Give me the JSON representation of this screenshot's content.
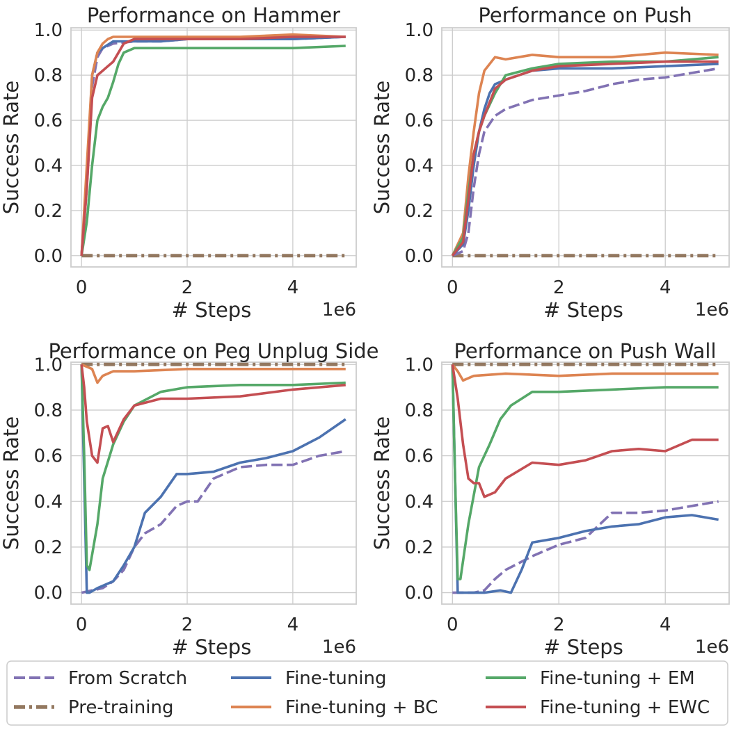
{
  "colors": {
    "from_scratch": "#8172b3",
    "pretraining": "#937860",
    "finetuning": "#4c72b0",
    "finetuning_bc": "#dd8452",
    "finetuning_em": "#55a868",
    "finetuning_ewc": "#c44e52",
    "grid": "#cccccc",
    "frame": "#cccccc"
  },
  "legend": {
    "entries": [
      {
        "key": "from_scratch",
        "label": "From Scratch",
        "style": "dashed"
      },
      {
        "key": "pretraining",
        "label": "Pre-training",
        "style": "dashdot"
      },
      {
        "key": "finetuning",
        "label": "Fine-tuning",
        "style": "solid"
      },
      {
        "key": "finetuning_bc",
        "label": "Fine-tuning + BC",
        "style": "solid"
      },
      {
        "key": "finetuning_em",
        "label": "Fine-tuning + EM",
        "style": "solid"
      },
      {
        "key": "finetuning_ewc",
        "label": "Fine-tuning + EWC",
        "style": "solid"
      }
    ]
  },
  "chart_data": [
    {
      "type": "line",
      "title": "Performance on Hammer",
      "xlabel": "# Steps",
      "ylabel": "Success Rate",
      "x_scale_label": "1e6",
      "xlim": [
        -0.2,
        5.2
      ],
      "ylim": [
        -0.05,
        1.01
      ],
      "xticks": [
        0,
        2,
        4
      ],
      "yticks": [
        "0.0",
        "0.2",
        "0.4",
        "0.6",
        "0.8",
        "1.0"
      ],
      "series": [
        {
          "key": "pretraining",
          "name": "Pre-training",
          "x": [
            0,
            5
          ],
          "y": [
            0,
            0
          ]
        },
        {
          "key": "from_scratch",
          "name": "From Scratch",
          "x": [
            0,
            0.1,
            0.2,
            0.3,
            0.4,
            0.6,
            1,
            1.5,
            2,
            3,
            4,
            5
          ],
          "y": [
            0,
            0.3,
            0.75,
            0.88,
            0.92,
            0.94,
            0.95,
            0.95,
            0.96,
            0.96,
            0.96,
            0.97
          ]
        },
        {
          "key": "finetuning",
          "name": "Fine-tuning",
          "x": [
            0,
            0.1,
            0.2,
            0.3,
            0.4,
            0.6,
            1,
            1.5,
            2,
            3,
            4,
            5
          ],
          "y": [
            0,
            0.35,
            0.8,
            0.9,
            0.92,
            0.95,
            0.95,
            0.95,
            0.96,
            0.96,
            0.96,
            0.97
          ]
        },
        {
          "key": "finetuning_bc",
          "name": "Fine-tuning + BC",
          "x": [
            0,
            0.1,
            0.2,
            0.3,
            0.4,
            0.5,
            0.6,
            1,
            2,
            3,
            4,
            5
          ],
          "y": [
            0,
            0.4,
            0.8,
            0.9,
            0.94,
            0.96,
            0.97,
            0.97,
            0.97,
            0.97,
            0.98,
            0.97
          ]
        },
        {
          "key": "finetuning_em",
          "name": "Fine-tuning + EM",
          "x": [
            0,
            0.1,
            0.2,
            0.3,
            0.4,
            0.5,
            0.6,
            0.7,
            0.8,
            1,
            2,
            3,
            4,
            5
          ],
          "y": [
            0,
            0.15,
            0.4,
            0.6,
            0.66,
            0.7,
            0.77,
            0.85,
            0.9,
            0.92,
            0.92,
            0.92,
            0.92,
            0.93
          ]
        },
        {
          "key": "finetuning_ewc",
          "name": "Fine-tuning + EWC",
          "x": [
            0,
            0.1,
            0.2,
            0.3,
            0.4,
            0.5,
            0.6,
            0.7,
            0.8,
            1,
            2,
            3,
            4,
            5
          ],
          "y": [
            0,
            0.3,
            0.7,
            0.8,
            0.82,
            0.84,
            0.86,
            0.9,
            0.94,
            0.96,
            0.96,
            0.96,
            0.97,
            0.97
          ]
        }
      ]
    },
    {
      "type": "line",
      "title": "Performance on Push",
      "xlabel": "# Steps",
      "ylabel": "Success Rate",
      "x_scale_label": "1e6",
      "xlim": [
        -0.2,
        5.2
      ],
      "ylim": [
        -0.05,
        1.01
      ],
      "xticks": [
        0,
        2,
        4
      ],
      "yticks": [
        "0.0",
        "0.2",
        "0.4",
        "0.6",
        "0.8",
        "1.0"
      ],
      "series": [
        {
          "key": "pretraining",
          "name": "Pre-training",
          "x": [
            0,
            5
          ],
          "y": [
            0,
            0
          ]
        },
        {
          "key": "from_scratch",
          "name": "From Scratch",
          "x": [
            0,
            0.2,
            0.3,
            0.4,
            0.5,
            0.6,
            0.8,
            1,
            1.5,
            2,
            2.5,
            3,
            3.5,
            4,
            4.5,
            5
          ],
          "y": [
            0,
            0.02,
            0.1,
            0.3,
            0.45,
            0.55,
            0.62,
            0.65,
            0.69,
            0.71,
            0.73,
            0.76,
            0.78,
            0.79,
            0.81,
            0.83
          ]
        },
        {
          "key": "finetuning",
          "name": "Fine-tuning",
          "x": [
            0,
            0.2,
            0.3,
            0.4,
            0.5,
            0.6,
            0.7,
            0.8,
            1,
            1.5,
            2,
            3,
            4,
            5
          ],
          "y": [
            0,
            0.05,
            0.2,
            0.4,
            0.55,
            0.65,
            0.72,
            0.76,
            0.78,
            0.82,
            0.83,
            0.83,
            0.84,
            0.85
          ]
        },
        {
          "key": "finetuning_bc",
          "name": "Fine-tuning + BC",
          "x": [
            0,
            0.2,
            0.3,
            0.4,
            0.5,
            0.6,
            0.8,
            1,
            1.5,
            2,
            3,
            4,
            5
          ],
          "y": [
            0,
            0.1,
            0.35,
            0.55,
            0.72,
            0.82,
            0.88,
            0.87,
            0.89,
            0.88,
            0.88,
            0.9,
            0.89
          ]
        },
        {
          "key": "finetuning_em",
          "name": "Fine-tuning + EM",
          "x": [
            0,
            0.2,
            0.3,
            0.4,
            0.5,
            0.6,
            0.8,
            1,
            1.5,
            2,
            3,
            4,
            5
          ],
          "y": [
            0,
            0.08,
            0.28,
            0.45,
            0.55,
            0.62,
            0.72,
            0.8,
            0.83,
            0.85,
            0.86,
            0.86,
            0.88
          ]
        },
        {
          "key": "finetuning_ewc",
          "name": "Fine-tuning + EWC",
          "x": [
            0,
            0.2,
            0.3,
            0.4,
            0.5,
            0.6,
            0.8,
            1,
            1.5,
            2,
            3,
            4,
            5
          ],
          "y": [
            0,
            0.06,
            0.25,
            0.45,
            0.55,
            0.62,
            0.74,
            0.78,
            0.82,
            0.84,
            0.85,
            0.86,
            0.86
          ]
        }
      ]
    },
    {
      "type": "line",
      "title": "Performance on Peg Unplug Side",
      "xlabel": "# Steps",
      "ylabel": "Success Rate",
      "x_scale_label": "1e6",
      "xlim": [
        -0.2,
        5.2
      ],
      "ylim": [
        -0.05,
        1.01
      ],
      "xticks": [
        0,
        2,
        4
      ],
      "yticks": [
        "0.0",
        "0.2",
        "0.4",
        "0.6",
        "0.8",
        "1.0"
      ],
      "series": [
        {
          "key": "pretraining",
          "name": "Pre-training",
          "x": [
            0,
            5
          ],
          "y": [
            1,
            1
          ]
        },
        {
          "key": "from_scratch",
          "name": "From Scratch",
          "x": [
            0,
            0.2,
            0.4,
            0.6,
            0.8,
            1,
            1.2,
            1.5,
            1.8,
            2,
            2.2,
            2.5,
            3,
            3.5,
            4,
            4.5,
            5
          ],
          "y": [
            0,
            0.01,
            0.02,
            0.05,
            0.1,
            0.2,
            0.26,
            0.3,
            0.38,
            0.4,
            0.4,
            0.5,
            0.55,
            0.56,
            0.56,
            0.6,
            0.62
          ]
        },
        {
          "key": "finetuning",
          "name": "Fine-tuning",
          "x": [
            0,
            0.05,
            0.1,
            0.15,
            0.3,
            0.6,
            0.8,
            1,
            1.2,
            1.5,
            1.8,
            2,
            2.5,
            3,
            3.5,
            4,
            4.5,
            5
          ],
          "y": [
            1,
            0.5,
            0.0,
            0.0,
            0.02,
            0.05,
            0.12,
            0.2,
            0.35,
            0.42,
            0.52,
            0.52,
            0.53,
            0.57,
            0.59,
            0.62,
            0.68,
            0.76
          ]
        },
        {
          "key": "finetuning_bc",
          "name": "Fine-tuning + BC",
          "x": [
            0,
            0.2,
            0.3,
            0.4,
            0.6,
            0.8,
            1,
            2,
            3,
            4,
            5
          ],
          "y": [
            1,
            0.98,
            0.92,
            0.95,
            0.97,
            0.97,
            0.97,
            0.98,
            0.98,
            0.98,
            0.98
          ]
        },
        {
          "key": "finetuning_em",
          "name": "Fine-tuning + EM",
          "x": [
            0,
            0.05,
            0.1,
            0.15,
            0.3,
            0.4,
            0.6,
            0.8,
            1,
            1.5,
            2,
            3,
            4,
            5
          ],
          "y": [
            1,
            0.6,
            0.12,
            0.1,
            0.3,
            0.5,
            0.65,
            0.75,
            0.82,
            0.88,
            0.9,
            0.91,
            0.91,
            0.92
          ]
        },
        {
          "key": "finetuning_ewc",
          "name": "Fine-tuning + EWC",
          "x": [
            0,
            0.05,
            0.1,
            0.2,
            0.3,
            0.4,
            0.5,
            0.6,
            0.8,
            1,
            1.5,
            2,
            3,
            4,
            5
          ],
          "y": [
            1,
            0.9,
            0.75,
            0.6,
            0.57,
            0.72,
            0.73,
            0.66,
            0.76,
            0.82,
            0.85,
            0.85,
            0.86,
            0.89,
            0.91
          ]
        }
      ]
    },
    {
      "type": "line",
      "title": "Performance on Push Wall",
      "xlabel": "# Steps",
      "ylabel": "Success Rate",
      "x_scale_label": "1e6",
      "xlim": [
        -0.2,
        5.2
      ],
      "ylim": [
        -0.05,
        1.01
      ],
      "xticks": [
        0,
        2,
        4
      ],
      "yticks": [
        "0.0",
        "0.2",
        "0.4",
        "0.6",
        "0.8",
        "1.0"
      ],
      "series": [
        {
          "key": "pretraining",
          "name": "Pre-training",
          "x": [
            0,
            5
          ],
          "y": [
            1,
            1
          ]
        },
        {
          "key": "from_scratch",
          "name": "From Scratch",
          "x": [
            0,
            0.4,
            0.6,
            0.8,
            1,
            1.5,
            2,
            2.5,
            3,
            3.5,
            4,
            4.5,
            5
          ],
          "y": [
            0,
            0,
            0.01,
            0.06,
            0.1,
            0.16,
            0.21,
            0.24,
            0.35,
            0.35,
            0.36,
            0.38,
            0.4
          ]
        },
        {
          "key": "finetuning",
          "name": "Fine-tuning",
          "x": [
            0,
            0.05,
            0.1,
            0.15,
            0.3,
            0.6,
            0.9,
            1.1,
            1.3,
            1.5,
            2,
            2.5,
            3,
            3.5,
            4,
            4.5,
            5
          ],
          "y": [
            1,
            0.5,
            0.0,
            0.0,
            0.0,
            0.0,
            0.01,
            0.0,
            0.1,
            0.22,
            0.24,
            0.27,
            0.29,
            0.3,
            0.33,
            0.34,
            0.32
          ]
        },
        {
          "key": "finetuning_bc",
          "name": "Fine-tuning + BC",
          "x": [
            0,
            0.1,
            0.2,
            0.4,
            1,
            2,
            3,
            4,
            5
          ],
          "y": [
            1,
            0.97,
            0.93,
            0.95,
            0.96,
            0.95,
            0.96,
            0.96,
            0.96
          ]
        },
        {
          "key": "finetuning_em",
          "name": "Fine-tuning + EM",
          "x": [
            0,
            0.05,
            0.1,
            0.15,
            0.3,
            0.5,
            0.7,
            0.9,
            1.1,
            1.5,
            2,
            3,
            4,
            5
          ],
          "y": [
            1,
            0.5,
            0.06,
            0.06,
            0.3,
            0.55,
            0.65,
            0.76,
            0.82,
            0.88,
            0.88,
            0.89,
            0.9,
            0.9
          ]
        },
        {
          "key": "finetuning_ewc",
          "name": "Fine-tuning + EWC",
          "x": [
            0,
            0.1,
            0.2,
            0.3,
            0.4,
            0.5,
            0.6,
            0.8,
            1,
            1.5,
            2,
            2.5,
            3,
            3.5,
            4,
            4.5,
            5
          ],
          "y": [
            1,
            0.85,
            0.65,
            0.5,
            0.48,
            0.48,
            0.42,
            0.44,
            0.5,
            0.57,
            0.56,
            0.58,
            0.62,
            0.63,
            0.62,
            0.67,
            0.67
          ]
        }
      ]
    }
  ]
}
